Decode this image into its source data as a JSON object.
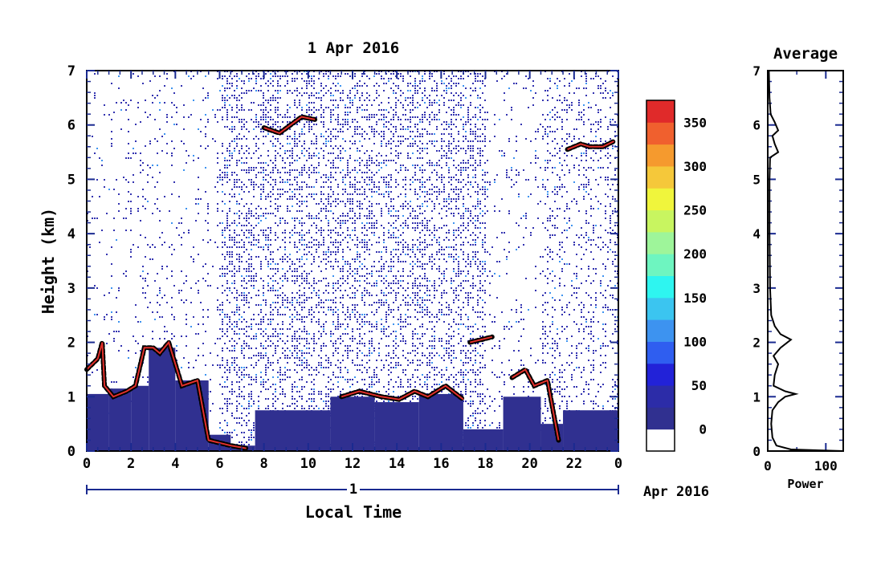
{
  "chart_data": [
    {
      "type": "heatmap",
      "title": "1 Apr 2016",
      "xlabel": "Local Time",
      "ylabel": "Height (km)",
      "x_ticks": [
        "0",
        "2",
        "4",
        "6",
        "8",
        "10",
        "12",
        "14",
        "16",
        "18",
        "20",
        "22",
        "0"
      ],
      "y_ticks": [
        "0",
        "1",
        "2",
        "3",
        "4",
        "5",
        "6",
        "7"
      ],
      "xlim": [
        0,
        24
      ],
      "ylim": [
        0,
        7
      ],
      "date_bar": {
        "day_label": "1",
        "month_label": "Apr 2016"
      },
      "colorbar": {
        "ticks": [
          "0",
          "50",
          "100",
          "150",
          "200",
          "250",
          "300",
          "350"
        ],
        "range": [
          -25,
          375
        ],
        "colors": [
          "#ffffff",
          "#303090",
          "#2c2ca8",
          "#2222d8",
          "#2f5ef0",
          "#3d93f0",
          "#3bc5f0",
          "#2ef5f0",
          "#6ef5c0",
          "#9ef59a",
          "#c8f560",
          "#f0f53c",
          "#f5c83a",
          "#f59a2e",
          "#f0602e",
          "#e02a2a"
        ]
      },
      "background_field": [
        {
          "x0": 0,
          "x1": 1.0,
          "top": 1.05
        },
        {
          "x0": 1.0,
          "x1": 2.0,
          "top": 1.15
        },
        {
          "x0": 2.0,
          "x1": 2.8,
          "top": 1.2
        },
        {
          "x0": 2.8,
          "x1": 4.0,
          "top": 1.9
        },
        {
          "x0": 4.0,
          "x1": 5.5,
          "top": 1.3
        },
        {
          "x0": 5.5,
          "x1": 6.5,
          "top": 0.3
        },
        {
          "x0": 6.5,
          "x1": 7.6,
          "top": 0.1
        },
        {
          "x0": 7.6,
          "x1": 11.0,
          "top": 0.75
        },
        {
          "x0": 11.0,
          "x1": 13.0,
          "top": 1.0
        },
        {
          "x0": 13.0,
          "x1": 15.0,
          "top": 0.9
        },
        {
          "x0": 15.0,
          "x1": 17.0,
          "top": 1.05
        },
        {
          "x0": 17.0,
          "x1": 18.8,
          "top": 0.4
        },
        {
          "x0": 18.8,
          "x1": 20.5,
          "top": 1.0
        },
        {
          "x0": 20.5,
          "x1": 21.5,
          "top": 0.5
        },
        {
          "x0": 21.5,
          "x1": 24.0,
          "top": 0.75
        }
      ],
      "layers": [
        {
          "name": "",
          "points": [
            [
              0,
              1.5
            ],
            [
              0.5,
              1.7
            ],
            [
              0.7,
              2.0
            ],
            [
              0.8,
              1.2
            ],
            [
              1.2,
              1.0
            ],
            [
              1.8,
              1.1
            ],
            [
              2.2,
              1.2
            ],
            [
              2.6,
              1.9
            ],
            [
              3.0,
              1.9
            ],
            [
              3.3,
              1.8
            ],
            [
              3.7,
              2.0
            ],
            [
              4.3,
              1.2
            ],
            [
              5.0,
              1.3
            ],
            [
              5.5,
              0.2
            ],
            [
              6.5,
              0.1
            ],
            [
              7.2,
              0.05
            ]
          ]
        },
        {
          "name": "",
          "points": [
            [
              8.0,
              5.95
            ],
            [
              8.7,
              5.85
            ],
            [
              9.2,
              6.0
            ],
            [
              9.7,
              6.15
            ],
            [
              10.3,
              6.1
            ]
          ]
        },
        {
          "name": "",
          "points": [
            [
              11.5,
              1.0
            ],
            [
              12.3,
              1.1
            ],
            [
              13.3,
              1.0
            ],
            [
              14.1,
              0.95
            ],
            [
              14.8,
              1.1
            ],
            [
              15.4,
              1.0
            ],
            [
              16.2,
              1.2
            ],
            [
              17.0,
              0.95
            ]
          ]
        },
        {
          "name": "",
          "points": [
            [
              17.3,
              2.0
            ],
            [
              17.8,
              2.05
            ],
            [
              18.3,
              2.1
            ]
          ]
        },
        {
          "name": "",
          "points": [
            [
              19.2,
              1.35
            ],
            [
              19.8,
              1.5
            ],
            [
              20.2,
              1.2
            ],
            [
              20.8,
              1.3
            ],
            [
              21.3,
              0.2
            ]
          ]
        },
        {
          "name": "",
          "points": [
            [
              21.7,
              5.55
            ],
            [
              22.3,
              5.65
            ],
            [
              22.7,
              5.6
            ],
            [
              23.3,
              5.6
            ],
            [
              23.8,
              5.7
            ]
          ]
        }
      ]
    },
    {
      "type": "line",
      "title": "Average",
      "xlabel": "Power",
      "x_ticks": [
        "0",
        "100"
      ],
      "y_ticks": [
        "0",
        "1",
        "2",
        "3",
        "4",
        "5",
        "6",
        "7"
      ],
      "xlim": [
        0,
        130
      ],
      "ylim": [
        0,
        7
      ],
      "series": [
        {
          "name": "",
          "points": [
            [
              130,
              0.0
            ],
            [
              40,
              0.03
            ],
            [
              15,
              0.1
            ],
            [
              8,
              0.25
            ],
            [
              6,
              0.5
            ],
            [
              8,
              0.75
            ],
            [
              18,
              0.9
            ],
            [
              30,
              1.0
            ],
            [
              48,
              1.05
            ],
            [
              30,
              1.1
            ],
            [
              10,
              1.2
            ],
            [
              12,
              1.4
            ],
            [
              18,
              1.6
            ],
            [
              10,
              1.75
            ],
            [
              22,
              1.9
            ],
            [
              40,
              2.05
            ],
            [
              22,
              2.15
            ],
            [
              12,
              2.3
            ],
            [
              6,
              2.5
            ],
            [
              4,
              3.0
            ],
            [
              3,
              4.0
            ],
            [
              3,
              5.0
            ],
            [
              4,
              5.4
            ],
            [
              18,
              5.5
            ],
            [
              12,
              5.65
            ],
            [
              8,
              5.8
            ],
            [
              18,
              5.9
            ],
            [
              12,
              6.05
            ],
            [
              5,
              6.2
            ],
            [
              3,
              6.5
            ],
            [
              2,
              7.0
            ]
          ]
        }
      ]
    }
  ]
}
